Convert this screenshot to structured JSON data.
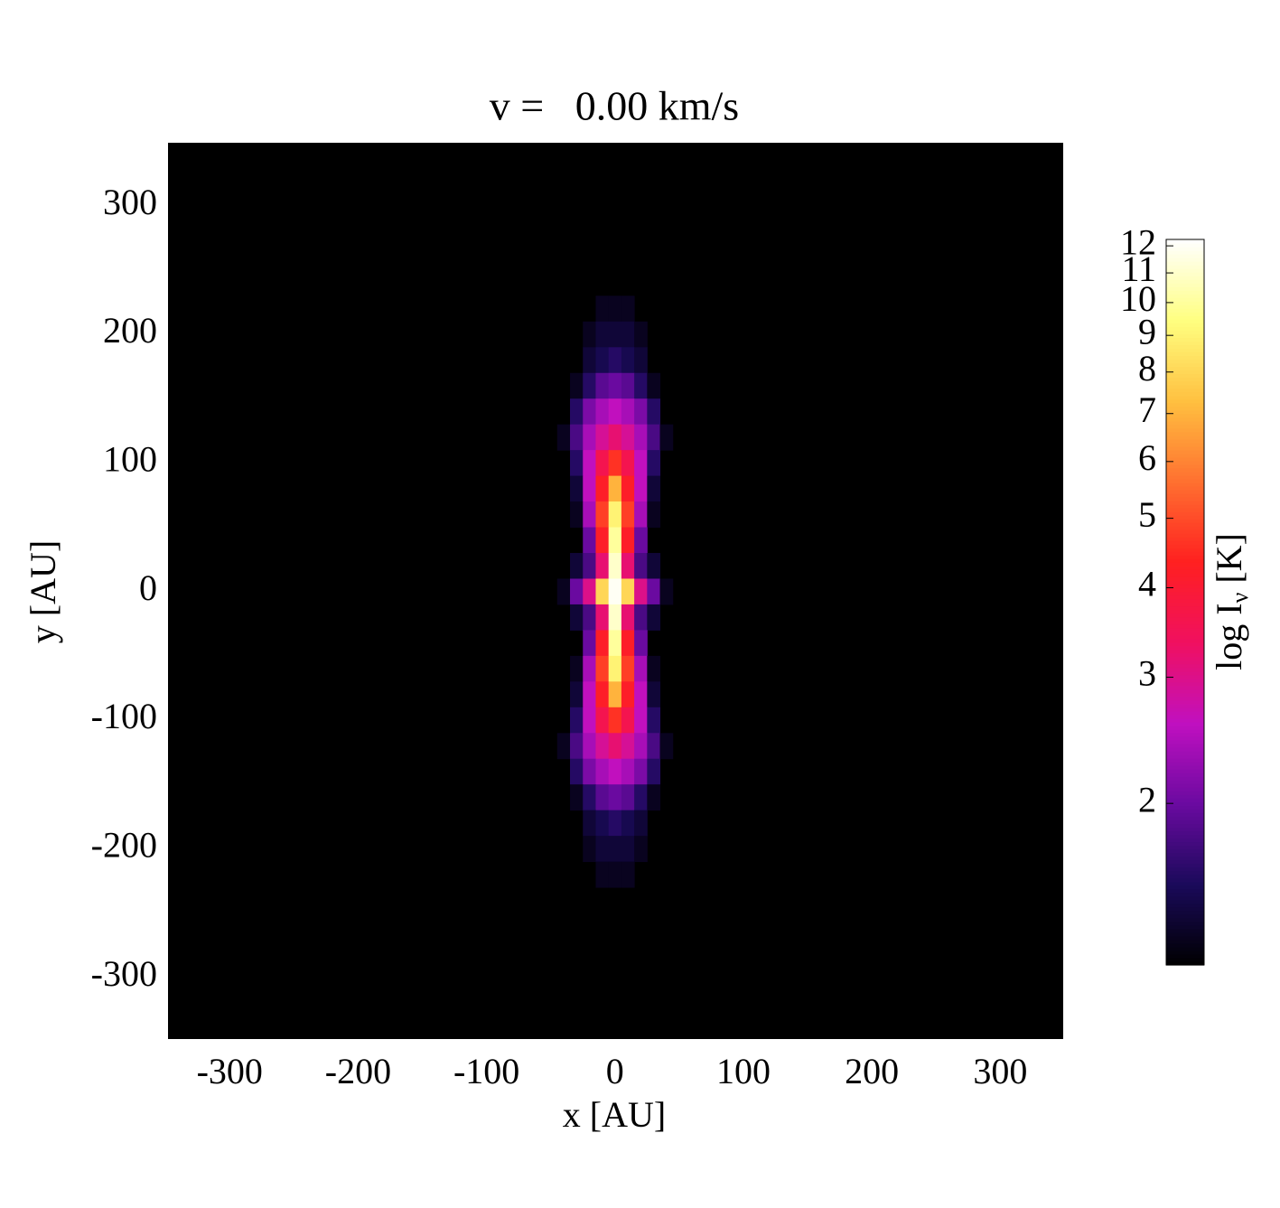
{
  "chart_data": {
    "type": "heatmap",
    "title": "v =   0.00 km/s",
    "xlabel": "x [AU]",
    "ylabel": "y [AU]",
    "xlim": [
      -348,
      349
    ],
    "ylim": [
      -348,
      349
    ],
    "xticks": [
      -300,
      -200,
      -100,
      0,
      100,
      200,
      300
    ],
    "yticks": [
      -300,
      -200,
      -100,
      0,
      100,
      200,
      300
    ],
    "x": [
      -40,
      -30,
      -20,
      -10,
      0,
      10,
      20,
      30,
      40
    ],
    "y": [
      220,
      200,
      180,
      160,
      140,
      120,
      100,
      80,
      60,
      40,
      20,
      0,
      -20,
      -40,
      -60,
      -80,
      -100,
      -120,
      -140,
      -160,
      -180,
      -200,
      -220
    ],
    "z": [
      [
        null,
        null,
        null,
        1.3,
        1.3,
        1.3,
        null,
        null,
        null
      ],
      [
        null,
        null,
        1.3,
        1.4,
        1.4,
        1.4,
        1.3,
        null,
        null
      ],
      [
        null,
        null,
        1.4,
        1.5,
        1.6,
        1.5,
        1.4,
        null,
        null
      ],
      [
        null,
        1.3,
        1.6,
        1.9,
        2.0,
        1.9,
        1.6,
        1.3,
        null
      ],
      [
        null,
        1.6,
        2.1,
        2.4,
        2.6,
        2.4,
        2.1,
        1.6,
        null
      ],
      [
        1.3,
        1.8,
        2.4,
        2.9,
        3.2,
        2.9,
        2.4,
        1.8,
        1.3
      ],
      [
        null,
        1.6,
        2.6,
        3.6,
        4.6,
        3.6,
        2.6,
        1.6,
        null
      ],
      [
        null,
        1.4,
        2.6,
        4.2,
        7.0,
        4.2,
        2.6,
        1.4,
        null
      ],
      [
        null,
        1.3,
        2.4,
        4.8,
        9.0,
        4.8,
        2.4,
        1.3,
        null
      ],
      [
        null,
        null,
        2.0,
        4.2,
        10.0,
        4.2,
        2.0,
        null,
        null
      ],
      [
        null,
        1.4,
        1.8,
        3.2,
        11.0,
        3.2,
        1.8,
        1.4,
        null
      ],
      [
        1.3,
        2.0,
        3.0,
        8.0,
        12.0,
        8.0,
        3.0,
        2.0,
        1.3
      ],
      [
        null,
        1.4,
        1.8,
        3.2,
        11.0,
        3.2,
        1.8,
        1.4,
        null
      ],
      [
        null,
        null,
        2.0,
        4.2,
        10.0,
        4.2,
        2.0,
        null,
        null
      ],
      [
        null,
        1.3,
        2.4,
        4.8,
        9.0,
        4.8,
        2.4,
        1.3,
        null
      ],
      [
        null,
        1.4,
        2.6,
        4.2,
        7.0,
        4.2,
        2.6,
        1.4,
        null
      ],
      [
        null,
        1.6,
        2.6,
        3.6,
        4.6,
        3.6,
        2.6,
        1.6,
        null
      ],
      [
        1.3,
        1.8,
        2.4,
        2.9,
        3.2,
        2.9,
        2.4,
        1.8,
        1.3
      ],
      [
        null,
        1.6,
        2.1,
        2.4,
        2.6,
        2.4,
        2.1,
        1.6,
        null
      ],
      [
        null,
        1.3,
        1.6,
        1.9,
        2.0,
        1.9,
        1.6,
        1.3,
        null
      ],
      [
        null,
        null,
        1.4,
        1.5,
        1.6,
        1.5,
        1.4,
        null,
        null
      ],
      [
        null,
        null,
        1.3,
        1.4,
        1.4,
        1.4,
        1.3,
        null,
        null
      ],
      [
        null,
        null,
        null,
        1.3,
        1.3,
        1.3,
        null,
        null,
        null
      ]
    ],
    "colormap": [
      "#000000",
      "#1a0a5a",
      "#6a0aa0",
      "#c010c0",
      "#f01060",
      "#ff2020",
      "#ff7030",
      "#ffc040",
      "#ffff80",
      "#ffffff"
    ],
    "colorbar": {
      "scale": "log",
      "clim": [
        1.19,
        12.25
      ],
      "ticks": [
        2,
        3,
        4,
        5,
        6,
        7,
        8,
        9,
        10,
        11,
        12
      ],
      "label": "log I",
      "label_sub": "ν",
      "label_unit": "[K]"
    }
  }
}
